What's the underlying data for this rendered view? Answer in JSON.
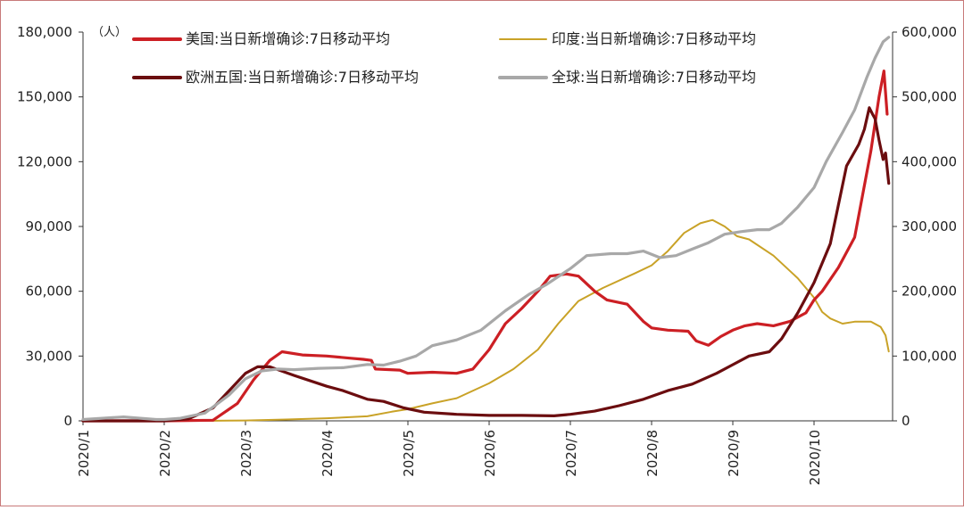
{
  "chart_data": {
    "type": "line",
    "unit_label": "（人）",
    "x_ticks": [
      "2020/1",
      "2020/2",
      "2020/3",
      "2020/4",
      "2020/5",
      "2020/6",
      "2020/7",
      "2020/8",
      "2020/9",
      "2020/10"
    ],
    "x_range": [
      0,
      9.85
    ],
    "left_axis": {
      "range": [
        0,
        180000
      ],
      "ticks": [
        "0",
        "30,000",
        "60,000",
        "90,000",
        "120,000",
        "150,000",
        "180,000"
      ]
    },
    "right_axis": {
      "range": [
        0,
        600000
      ],
      "ticks": [
        "0",
        "100,000",
        "200,000",
        "300,000",
        "400,000",
        "500,000",
        "600,000"
      ]
    },
    "legend_placement": "top, two columns",
    "series": [
      {
        "name": "美国:当日新增确诊:7日移动平均",
        "axis": "left",
        "color": "#cc1f24",
        "points": [
          [
            0,
            0
          ],
          [
            1,
            0
          ],
          [
            1.6,
            300
          ],
          [
            1.9,
            8000
          ],
          [
            2.1,
            19000
          ],
          [
            2.3,
            28000
          ],
          [
            2.45,
            32000
          ],
          [
            2.7,
            30500
          ],
          [
            3.0,
            30000
          ],
          [
            3.3,
            29000
          ],
          [
            3.45,
            28500
          ],
          [
            3.55,
            28000
          ],
          [
            3.6,
            24000
          ],
          [
            3.9,
            23500
          ],
          [
            4.0,
            22000
          ],
          [
            4.3,
            22500
          ],
          [
            4.6,
            22000
          ],
          [
            4.8,
            24000
          ],
          [
            5.0,
            33000
          ],
          [
            5.2,
            45000
          ],
          [
            5.4,
            52000
          ],
          [
            5.6,
            60000
          ],
          [
            5.75,
            67000
          ],
          [
            5.95,
            68000
          ],
          [
            6.1,
            67000
          ],
          [
            6.3,
            60000
          ],
          [
            6.45,
            56000
          ],
          [
            6.7,
            54000
          ],
          [
            6.9,
            46000
          ],
          [
            7.0,
            43000
          ],
          [
            7.2,
            42000
          ],
          [
            7.45,
            41500
          ],
          [
            7.55,
            37000
          ],
          [
            7.7,
            35000
          ],
          [
            7.85,
            39000
          ],
          [
            8.0,
            42000
          ],
          [
            8.15,
            44000
          ],
          [
            8.3,
            45000
          ],
          [
            8.5,
            44000
          ],
          [
            8.7,
            46000
          ],
          [
            8.9,
            50000
          ],
          [
            9.0,
            56000
          ],
          [
            9.1,
            60000
          ],
          [
            9.3,
            71000
          ],
          [
            9.5,
            85000
          ],
          [
            9.6,
            105000
          ],
          [
            9.7,
            125000
          ],
          [
            9.8,
            150000
          ],
          [
            9.86,
            162000
          ],
          [
            9.9,
            142000
          ]
        ]
      },
      {
        "name": "印度:当日新增确诊:7日移动平均",
        "axis": "right",
        "color": "#c9a227",
        "points": [
          [
            0,
            0
          ],
          [
            1,
            0
          ],
          [
            1.5,
            0
          ],
          [
            2.0,
            500
          ],
          [
            2.5,
            2000
          ],
          [
            3.0,
            4000
          ],
          [
            3.5,
            7000
          ],
          [
            3.8,
            14000
          ],
          [
            4.0,
            18000
          ],
          [
            4.3,
            27000
          ],
          [
            4.6,
            35000
          ],
          [
            5.0,
            58000
          ],
          [
            5.3,
            80000
          ],
          [
            5.6,
            110000
          ],
          [
            5.85,
            150000
          ],
          [
            6.1,
            185000
          ],
          [
            6.4,
            205000
          ],
          [
            6.8,
            228000
          ],
          [
            7.0,
            240000
          ],
          [
            7.2,
            262000
          ],
          [
            7.4,
            290000
          ],
          [
            7.6,
            305000
          ],
          [
            7.75,
            310000
          ],
          [
            7.9,
            300000
          ],
          [
            8.05,
            285000
          ],
          [
            8.2,
            280000
          ],
          [
            8.5,
            255000
          ],
          [
            8.8,
            220000
          ],
          [
            9.0,
            190000
          ],
          [
            9.1,
            168000
          ],
          [
            9.2,
            158000
          ],
          [
            9.35,
            150000
          ],
          [
            9.5,
            153000
          ],
          [
            9.7,
            153000
          ],
          [
            9.82,
            145000
          ],
          [
            9.88,
            132000
          ],
          [
            9.92,
            107000
          ]
        ]
      },
      {
        "name": "欧洲五国:当日新增确诊:7日移动平均",
        "axis": "left",
        "color": "#6b0d0f",
        "points": [
          [
            0,
            0
          ],
          [
            1,
            0
          ],
          [
            1.3,
            1000
          ],
          [
            1.6,
            6000
          ],
          [
            1.8,
            14000
          ],
          [
            2.0,
            22000
          ],
          [
            2.15,
            25000
          ],
          [
            2.3,
            25000
          ],
          [
            2.6,
            21000
          ],
          [
            3.0,
            16000
          ],
          [
            3.2,
            14000
          ],
          [
            3.5,
            10000
          ],
          [
            3.7,
            9000
          ],
          [
            3.95,
            6000
          ],
          [
            4.2,
            4000
          ],
          [
            4.6,
            3000
          ],
          [
            5.0,
            2500
          ],
          [
            5.4,
            2500
          ],
          [
            5.8,
            2300
          ],
          [
            6.0,
            3000
          ],
          [
            6.3,
            4500
          ],
          [
            6.6,
            7000
          ],
          [
            6.9,
            10000
          ],
          [
            7.2,
            14000
          ],
          [
            7.5,
            17000
          ],
          [
            7.8,
            22000
          ],
          [
            8.0,
            26000
          ],
          [
            8.2,
            30000
          ],
          [
            8.45,
            32000
          ],
          [
            8.6,
            38000
          ],
          [
            8.8,
            50000
          ],
          [
            9.0,
            64000
          ],
          [
            9.2,
            82000
          ],
          [
            9.4,
            118000
          ],
          [
            9.55,
            128000
          ],
          [
            9.62,
            135000
          ],
          [
            9.68,
            145000
          ],
          [
            9.72,
            142000
          ],
          [
            9.75,
            140000
          ],
          [
            9.8,
            130000
          ],
          [
            9.85,
            121000
          ],
          [
            9.88,
            124000
          ],
          [
            9.92,
            110000
          ]
        ]
      },
      {
        "name": "全球:当日新增确诊:7日移动平均",
        "axis": "right",
        "color": "#a8a8a8",
        "points": [
          [
            0,
            2000
          ],
          [
            0.5,
            6000
          ],
          [
            0.9,
            2000
          ],
          [
            1.0,
            2000
          ],
          [
            1.2,
            4000
          ],
          [
            1.5,
            12000
          ],
          [
            1.8,
            40000
          ],
          [
            2.0,
            65000
          ],
          [
            2.2,
            77000
          ],
          [
            2.4,
            80000
          ],
          [
            2.6,
            79000
          ],
          [
            2.9,
            81000
          ],
          [
            3.2,
            82000
          ],
          [
            3.5,
            87000
          ],
          [
            3.7,
            86000
          ],
          [
            3.9,
            92000
          ],
          [
            4.1,
            100000
          ],
          [
            4.3,
            116000
          ],
          [
            4.6,
            125000
          ],
          [
            4.9,
            140000
          ],
          [
            5.2,
            170000
          ],
          [
            5.5,
            196000
          ],
          [
            5.7,
            210000
          ],
          [
            6.0,
            235000
          ],
          [
            6.2,
            255000
          ],
          [
            6.5,
            258000
          ],
          [
            6.7,
            258000
          ],
          [
            6.9,
            262000
          ],
          [
            7.1,
            252000
          ],
          [
            7.3,
            255000
          ],
          [
            7.5,
            265000
          ],
          [
            7.7,
            275000
          ],
          [
            7.9,
            288000
          ],
          [
            8.1,
            292000
          ],
          [
            8.3,
            295000
          ],
          [
            8.45,
            295000
          ],
          [
            8.6,
            305000
          ],
          [
            8.8,
            330000
          ],
          [
            9.0,
            360000
          ],
          [
            9.15,
            400000
          ],
          [
            9.35,
            445000
          ],
          [
            9.5,
            480000
          ],
          [
            9.65,
            530000
          ],
          [
            9.75,
            560000
          ],
          [
            9.85,
            585000
          ],
          [
            9.92,
            592000
          ]
        ]
      }
    ]
  }
}
